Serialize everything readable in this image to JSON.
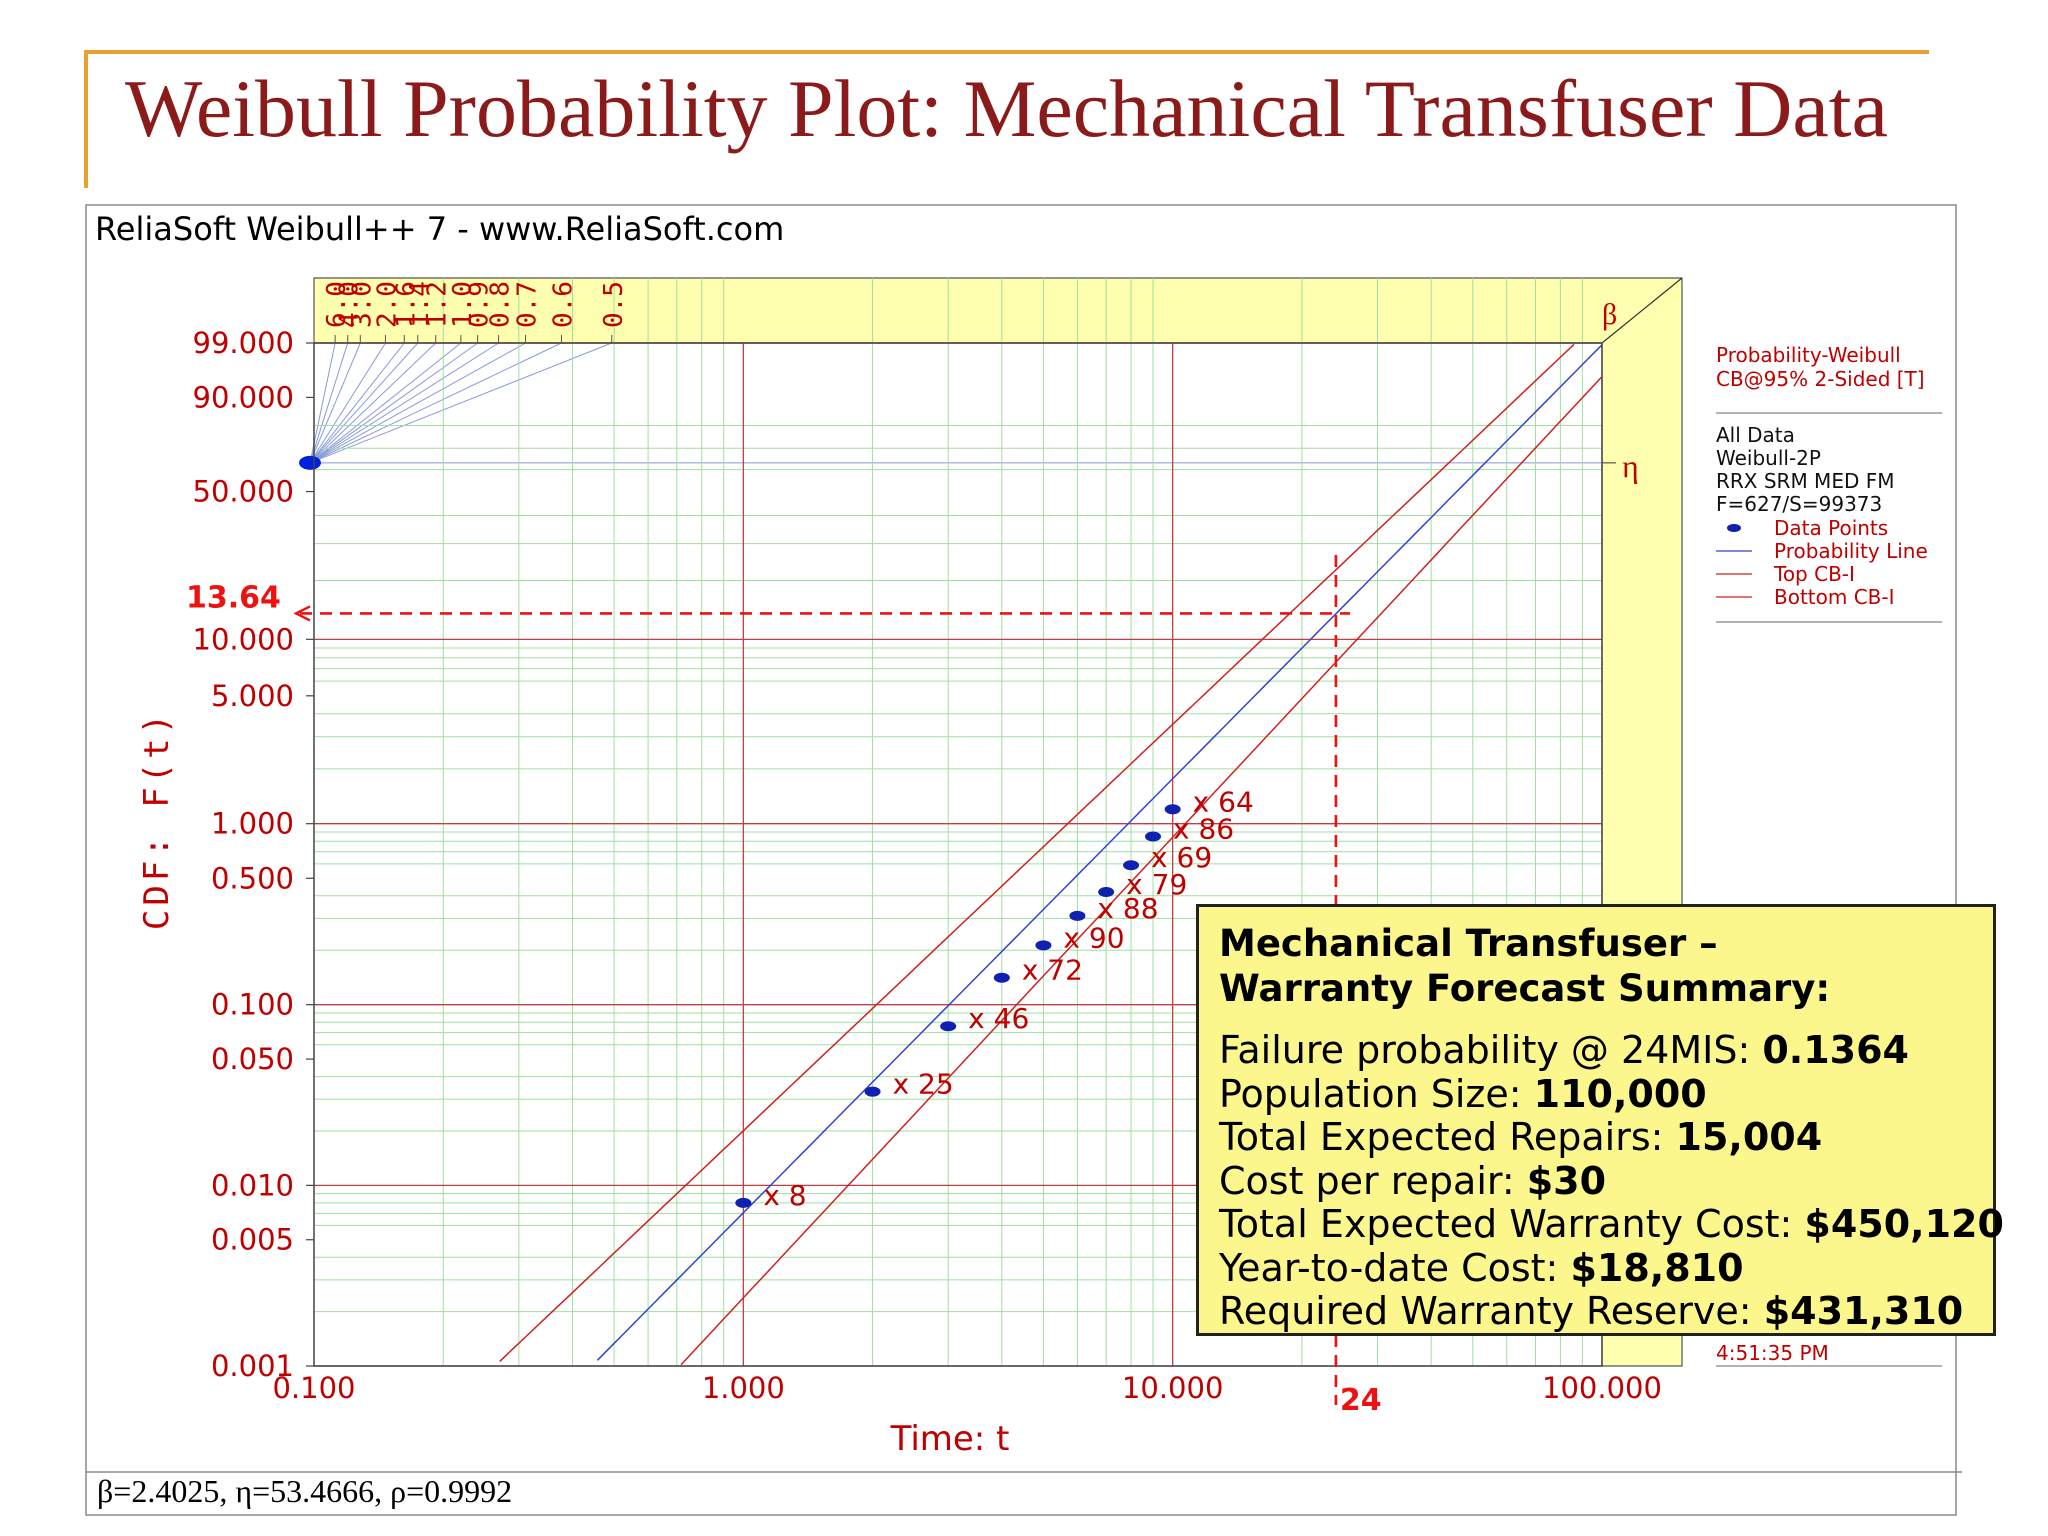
{
  "slide_title": "Weibull Probability Plot: Mechanical Transfuser Data",
  "software_label": "ReliaSoft Weibull++ 7 - www.ReliaSoft.com",
  "parameters_text": "β=2.4025, η=53.4666, ρ=0.9992",
  "colors": {
    "title": "#8b1a1a",
    "accent_rule": "#e8a030",
    "axis_text": "#c00000",
    "probability_line": "#3344cc",
    "confidence_bounds": "#d02020",
    "data_points": "#1020b0",
    "shade": "#ffffb0",
    "summary_bg": "#fbf78d"
  },
  "chart_data": {
    "type": "scatter",
    "x_scale": "log",
    "y_scale": "weibull",
    "xlabel": "Time: t",
    "ylabel": "CDF: F(t)",
    "xlim": [
      0.1,
      100
    ],
    "ylim": [
      0.001,
      99
    ],
    "x_ticks": [
      {
        "value": 0.1,
        "label": "0.100"
      },
      {
        "value": 1,
        "label": "1.000"
      },
      {
        "value": 10,
        "label": "10.000"
      },
      {
        "value": 100,
        "label": "100.000"
      }
    ],
    "y_ticks": [
      {
        "value": 99,
        "label": "99.000"
      },
      {
        "value": 90,
        "label": "90.000"
      },
      {
        "value": 50,
        "label": "50.000"
      },
      {
        "value": 10,
        "label": "10.000"
      },
      {
        "value": 5,
        "label": "5.000"
      },
      {
        "value": 1,
        "label": "1.000"
      },
      {
        "value": 0.5,
        "label": "0.500"
      },
      {
        "value": 0.1,
        "label": "0.100"
      },
      {
        "value": 0.05,
        "label": "0.050"
      },
      {
        "value": 0.01,
        "label": "0.010"
      },
      {
        "value": 0.005,
        "label": "0.005"
      },
      {
        "value": 0.001,
        "label": "0.001"
      }
    ],
    "beta_scale_labels": [
      "6.0",
      "4.0",
      "3.0",
      "2.0",
      "1.6",
      "1.4",
      "1.2",
      "1.0",
      "0.9",
      "0.8",
      "0.7",
      "0.6",
      "0.5"
    ],
    "beta_symbol": "β",
    "eta_symbol": "η",
    "series": [
      {
        "name": "Data Points",
        "points": [
          {
            "x": 1,
            "y": 0.008,
            "label": "x 8"
          },
          {
            "x": 2,
            "y": 0.033,
            "label": "x 25"
          },
          {
            "x": 3,
            "y": 0.076,
            "label": "x 46"
          },
          {
            "x": 4,
            "y": 0.141,
            "label": "x 72"
          },
          {
            "x": 5,
            "y": 0.213,
            "label": "x 90"
          },
          {
            "x": 6,
            "y": 0.31,
            "label": "x 88"
          },
          {
            "x": 7,
            "y": 0.42,
            "label": "x 79"
          },
          {
            "x": 8,
            "y": 0.59,
            "label": "x 69"
          },
          {
            "x": 9,
            "y": 0.85,
            "label": "x 86"
          },
          {
            "x": 10,
            "y": 1.2,
            "label": "x 64"
          }
        ]
      },
      {
        "name": "Probability Line",
        "beta": 2.4025,
        "eta": 53.4666
      },
      {
        "name": "Top CB-I"
      },
      {
        "name": "Bottom CB-I"
      }
    ],
    "forecast": {
      "x": 24,
      "x_label": "24",
      "y": 13.64,
      "y_label": "13.64"
    },
    "legend": {
      "placement": "right",
      "header1": "Probability-Weibull",
      "header2": "CB@95% 2-Sided [T]",
      "lines": [
        "All Data",
        "Weibull-2P",
        "RRX SRM MED FM",
        "F=627/S=99373"
      ],
      "entries": [
        "Data Points",
        "Probability Line",
        "Top CB-I",
        "Bottom CB-I"
      ],
      "timestamp": "4:51:35 PM"
    }
  },
  "summary": {
    "title_line1": "Mechanical Transfuser –",
    "title_line2": "Warranty Forecast Summary:",
    "rows": [
      {
        "label": "Failure probability @ 24MIS: ",
        "value": "0.1364"
      },
      {
        "label": "Population Size: ",
        "value": "110,000"
      },
      {
        "label": "Total Expected Repairs: ",
        "value": "15,004"
      },
      {
        "label": "Cost per repair: ",
        "value": "$30"
      },
      {
        "label": "Total Expected Warranty Cost: ",
        "value": "$450,120"
      },
      {
        "label": "Year-to-date Cost: ",
        "value": "$18,810"
      },
      {
        "label": "Required Warranty Reserve: ",
        "value": "$431,310"
      }
    ]
  }
}
